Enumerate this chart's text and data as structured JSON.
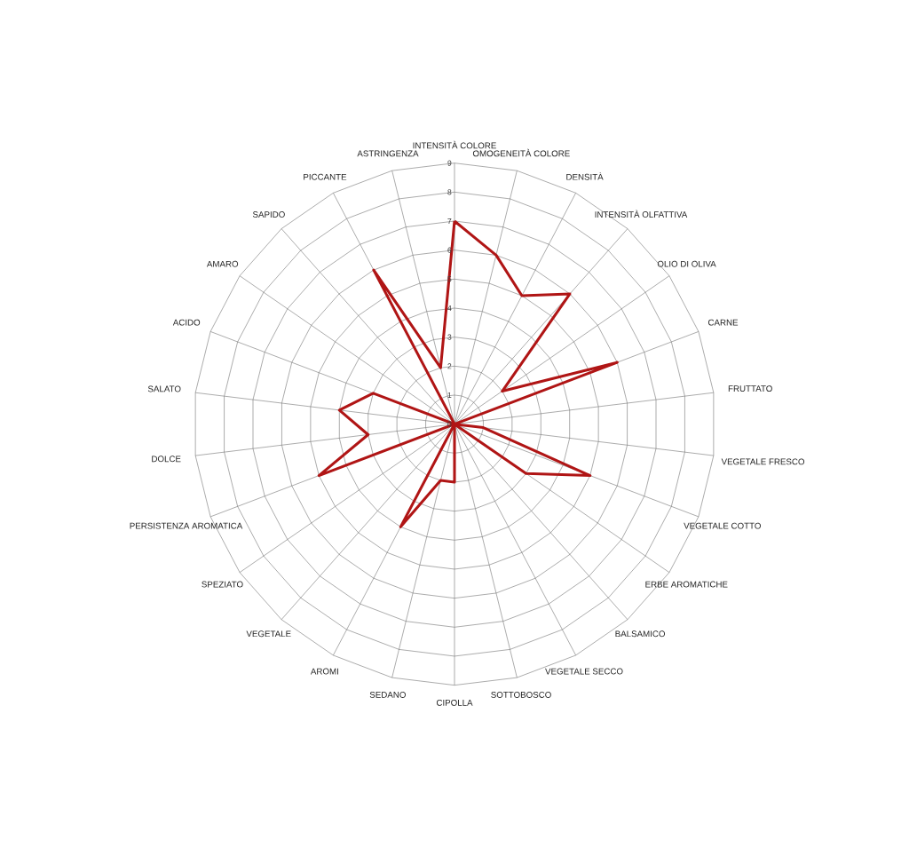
{
  "chart_data": {
    "type": "radar",
    "categories": [
      "INTENSITÀ COLORE",
      "OMOGENEITÀ COLORE",
      "DENSITÀ",
      "INTENSITÀ OLFATTIVA",
      "OLIO DI OLIVA",
      "CARNE",
      "FRUTTATO",
      "VEGETALE FRESCO",
      "VEGETALE COTTO",
      "ERBE AROMATICHE",
      "BALSAMICO",
      "VEGETALE SECCO",
      "SOTTOBOSCO",
      "CIPOLLA",
      "SEDANO",
      "AROMI",
      "VEGETALE",
      "SPEZIATO",
      "PERSISTENZA AROMATICA",
      "DOLCE",
      "SALATO",
      "ACIDO",
      "AMARO",
      "SAPIDO",
      "PICCANTE",
      "ASTRINGENZA"
    ],
    "series": [
      {
        "color": "#b01515",
        "values": [
          7,
          6,
          5,
          6,
          2,
          6,
          0,
          1,
          5,
          3,
          0,
          0,
          0,
          2,
          2,
          4,
          0,
          0,
          5,
          3,
          4,
          3,
          0,
          0,
          6,
          2
        ]
      }
    ],
    "ylim": [
      0,
      9
    ],
    "yticks": [
      0,
      1,
      2,
      3,
      4,
      5,
      6,
      7,
      8,
      9
    ],
    "grid": true
  }
}
